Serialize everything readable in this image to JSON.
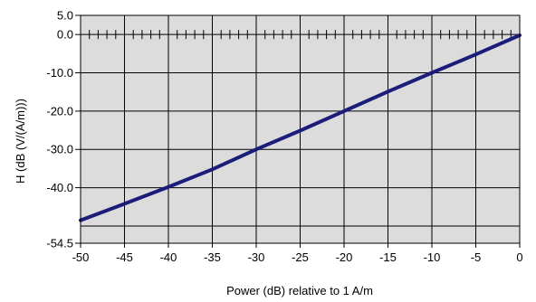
{
  "chart_data": {
    "type": "line",
    "xlabel": "Power (dB) relative to 1 A/m",
    "ylabel": "H (dB (V/(A/m)))",
    "xlim": [
      -50,
      0
    ],
    "ylim": [
      -54.5,
      5.0
    ],
    "x_ticks": [
      -50,
      -45,
      -40,
      -35,
      -30,
      -25,
      -20,
      -15,
      -10,
      -5,
      0
    ],
    "x_tick_labels": [
      "-50",
      "-45",
      "-40",
      "-35",
      "-30",
      "-25",
      "-20",
      "-15",
      "-10",
      "-5",
      "0"
    ],
    "y_ticks": [
      5.0,
      0.0,
      -10.0,
      -20.0,
      -30.0,
      -40.0,
      -54.5
    ],
    "y_tick_labels": [
      "5.0",
      "0.0",
      "-10.0",
      "-20.0",
      "-30.0",
      "-40.0",
      "-54.5"
    ],
    "y_grid": [
      0,
      -10,
      -20,
      -30,
      -40,
      -50
    ],
    "grid": true,
    "series": [
      {
        "x": [
          -50,
          -45,
          -40,
          -35,
          -30,
          -25,
          -20,
          -15,
          -10,
          -5,
          0
        ],
        "y": [
          -48.5,
          -44.2,
          -39.8,
          -35.2,
          -30.0,
          -25.1,
          -20.0,
          -14.9,
          -10.0,
          -5.2,
          -0.2
        ]
      }
    ],
    "colors": {
      "plot_bg": "#dcdcdc",
      "line": "#1c1c7a",
      "grid": "#000000"
    }
  }
}
